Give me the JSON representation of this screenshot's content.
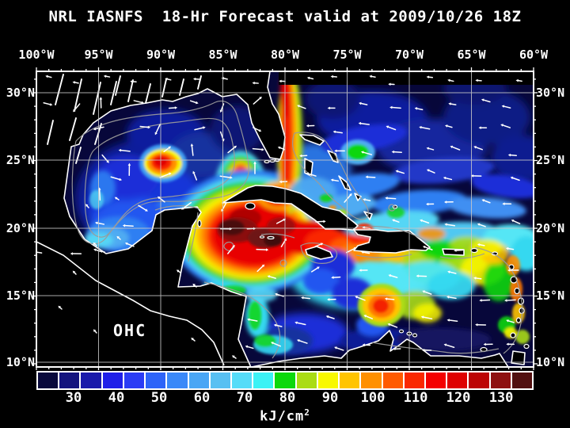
{
  "title": "NRL IASNFS  18-Hr Forecast valid at 2009/10/26 18Z",
  "map": {
    "annotation": "OHC",
    "top_axis_labels": [
      "100°W",
      "95°W",
      "90°W",
      "85°W",
      "80°W",
      "75°W",
      "70°W",
      "65°W",
      "60°W"
    ],
    "left_axis_labels": [
      "30°N",
      "25°N",
      "20°N",
      "15°N",
      "10°N"
    ],
    "right_axis_labels": [
      "30°N",
      "25°N",
      "20°N",
      "15°N",
      "10°N"
    ]
  },
  "colorbar": {
    "tick_labels": [
      "30",
      "40",
      "50",
      "60",
      "70",
      "80",
      "90",
      "100",
      "110",
      "120",
      "130"
    ],
    "units_base": "kJ/cm",
    "units_exponent": "2",
    "cell_colors": [
      "#0A0A3C",
      "#14147E",
      "#1A1AAA",
      "#1F1FE8",
      "#2B3CF5",
      "#2E64F8",
      "#3A88F8",
      "#4AA6F5",
      "#58C0F2",
      "#55DCF8",
      "#3CF2F5",
      "#0CD80C",
      "#AADC14",
      "#F8F800",
      "#FFC400",
      "#FF9000",
      "#FF5A00",
      "#FA2800",
      "#F40000",
      "#DE0000",
      "#BC0404",
      "#8E1010",
      "#521010"
    ]
  },
  "colors": {
    "background": "#000000",
    "land": "#000000",
    "coastline": "#ffffff",
    "bathymetry_contour": "#9a9a9a",
    "grid": "#c8c8c8",
    "ocean_base": "#07073a",
    "current_vector": "#ffffff",
    "text": "#ffffff"
  },
  "chart_data": {
    "type": "heatmap",
    "title": "NRL IASNFS 18-Hr Forecast valid at 2009/10/26 18Z",
    "variable": "OHC",
    "units": "kJ/cm2",
    "legend_tick_values": [
      30,
      40,
      50,
      60,
      70,
      80,
      90,
      100,
      110,
      120,
      130
    ],
    "legend_cell_count": 23,
    "x_axis_ticks_lon": [
      "100°W",
      "95°W",
      "90°W",
      "85°W",
      "80°W",
      "75°W",
      "70°W",
      "65°W",
      "60°W"
    ],
    "y_axis_ticks_lat": [
      "30°N",
      "25°N",
      "20°N",
      "15°N",
      "10°N"
    ],
    "grid": true,
    "legend_position": "bottom"
  }
}
